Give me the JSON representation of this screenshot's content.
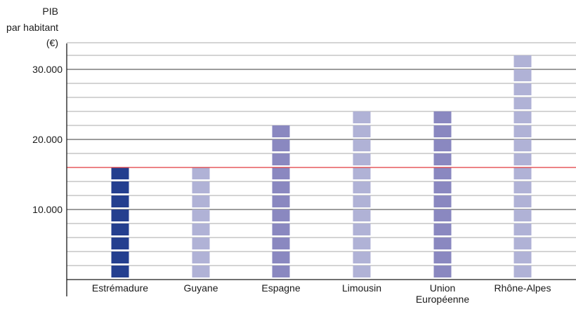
{
  "chart_data": {
    "type": "bar",
    "ylabel_lines": [
      "PIB",
      "par habitant",
      "(€)"
    ],
    "categories": [
      {
        "lines": [
          "Estrémadure"
        ]
      },
      {
        "lines": [
          "Guyane"
        ]
      },
      {
        "lines": [
          "Espagne"
        ]
      },
      {
        "lines": [
          "Limousin"
        ]
      },
      {
        "lines": [
          "Union",
          "Européenne"
        ]
      },
      {
        "lines": [
          "Rhône-Alpes"
        ]
      }
    ],
    "values": [
      16000,
      16000,
      22000,
      24000,
      24000,
      32000
    ],
    "bar_colors": [
      "#243f8f",
      "#b0b2d6",
      "#8a88c0",
      "#b0b2d6",
      "#8a88c0",
      "#b0b2d6"
    ],
    "y_ticks": [
      {
        "value": 10000,
        "label": "10.000"
      },
      {
        "value": 20000,
        "label": "20.000"
      },
      {
        "value": 30000,
        "label": "30.000"
      }
    ],
    "ylim": [
      0,
      33000
    ],
    "minor_grid_step": 2000,
    "reference_line": {
      "value": 16000,
      "color": "#e0393e"
    },
    "grid": true
  }
}
